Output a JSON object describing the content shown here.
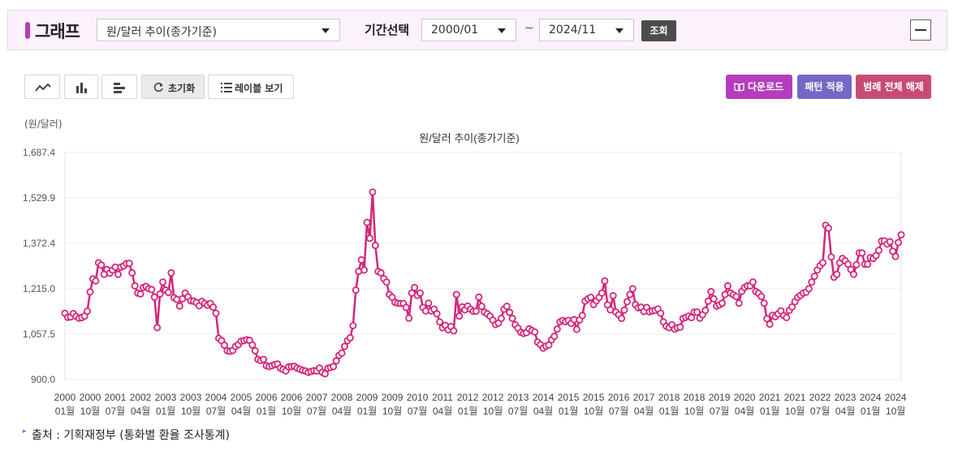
{
  "header": {
    "title": "그래프",
    "indicator_select": "원/달러 추이(종가기준)",
    "period_label": "기간선택",
    "period_start": "2000/01",
    "period_tilde": "~",
    "period_end": "2024/11",
    "query_button": "조회"
  },
  "toolbar": {
    "reset_label": "초기화",
    "label_view": "레이블 보기",
    "download_label": "다운로드",
    "pattern_label": "패턴 적용",
    "legend_release_label": "범례 전체 해제"
  },
  "colors": {
    "accent": "#b23dbb",
    "series": "#d4267a",
    "download_button": "#b43cbd",
    "pattern_button": "#7468c6",
    "legend_button": "#c84b74"
  },
  "icons": [
    "line-chart-icon",
    "bar-chart-icon",
    "horizontal-bar-chart-icon",
    "refresh-icon",
    "list-icon",
    "book-icon",
    "chevron-down-icon",
    "minus-icon"
  ],
  "unit_label": "(원/달러)",
  "source": "출처 : 기획재정부 (통화별 환율 조사통계)",
  "chart_data": {
    "type": "line",
    "title": "원/달러 추이(종가기준)",
    "ylabel": "(원/달러)",
    "ylim": [
      900.0,
      1687.4
    ],
    "yticks": [
      "900.0",
      "1,057.5",
      "1,215.0",
      "1,372.4",
      "1,529.9",
      "1,687.4"
    ],
    "x_start": "2000/01",
    "x_end": "2024/11",
    "xtick_labels": [
      [
        "2000",
        "01월"
      ],
      [
        "2000",
        "10월"
      ],
      [
        "2001",
        "07월"
      ],
      [
        "2002",
        "04월"
      ],
      [
        "2003",
        "01월"
      ],
      [
        "2003",
        "10월"
      ],
      [
        "2004",
        "07월"
      ],
      [
        "2005",
        "04월"
      ],
      [
        "2006",
        "01월"
      ],
      [
        "2006",
        "10월"
      ],
      [
        "2007",
        "07월"
      ],
      [
        "2008",
        "04월"
      ],
      [
        "2009",
        "01월"
      ],
      [
        "2009",
        "10월"
      ],
      [
        "2010",
        "07월"
      ],
      [
        "2011",
        "04월"
      ],
      [
        "2012",
        "01월"
      ],
      [
        "2012",
        "10월"
      ],
      [
        "2013",
        "07월"
      ],
      [
        "2014",
        "04월"
      ],
      [
        "2015",
        "01월"
      ],
      [
        "2015",
        "10월"
      ],
      [
        "2016",
        "07월"
      ],
      [
        "2017",
        "04월"
      ],
      [
        "2018",
        "01월"
      ],
      [
        "2018",
        "10월"
      ],
      [
        "2019",
        "07월"
      ],
      [
        "2020",
        "04월"
      ],
      [
        "2021",
        "01월"
      ],
      [
        "2021",
        "10월"
      ],
      [
        "2022",
        "07월"
      ],
      [
        "2023",
        "04월"
      ],
      [
        "2024",
        "01월"
      ],
      [
        "2024",
        "10월"
      ]
    ],
    "grid": true,
    "legend": "none",
    "series": [
      {
        "values": [
          1130,
          1116,
          1117,
          1129,
          1119,
          1113,
          1115,
          1120,
          1137,
          1204,
          1249,
          1242,
          1305,
          1297,
          1265,
          1282,
          1269,
          1280,
          1290,
          1265,
          1290,
          1294,
          1302,
          1303,
          1270,
          1225,
          1200,
          1197,
          1219,
          1223,
          1215,
          1212,
          1186,
          1080,
          1197,
          1238,
          1210,
          1202,
          1270,
          1184,
          1178,
          1155,
          1180,
          1200,
          1187,
          1173,
          1172,
          1167,
          1156,
          1171,
          1164,
          1158,
          1164,
          1151,
          1130,
          1043,
          1035,
          1019,
          1000,
          998,
          1001,
          1015,
          1021,
          1033,
          1035,
          1038,
          1036,
          1020,
          1000,
          970,
          966,
          970,
          948,
          945,
          948,
          952,
          954,
          940,
          935,
          930,
          944,
          945,
          946,
          940,
          936,
          932,
          930,
          925,
          928,
          931,
          930,
          940,
          925,
          920,
          939,
          942,
          945,
          965,
          984,
          992,
          1015,
          1035,
          1045,
          1087,
          1210,
          1275,
          1315,
          1280,
          1445,
          1390,
          1550,
          1365,
          1275,
          1270,
          1250,
          1238,
          1195,
          1185,
          1168,
          1165,
          1164,
          1164,
          1150,
          1113,
          1200,
          1219,
          1192,
          1200,
          1150,
          1138,
          1165,
          1138,
          1144,
          1128,
          1100,
          1080,
          1088,
          1073,
          1084,
          1069,
          1195,
          1120,
          1152,
          1142,
          1155,
          1144,
          1137,
          1137,
          1186,
          1154,
          1134,
          1128,
          1120,
          1106,
          1091,
          1096,
          1112,
          1144,
          1154,
          1133,
          1112,
          1090,
          1078,
          1064,
          1060,
          1063,
          1076,
          1070,
          1065,
          1030,
          1021,
          1009,
          1016,
          1020,
          1038,
          1050,
          1075,
          1100,
          1105,
          1101,
          1105,
          1095,
          1108,
          1074,
          1107,
          1122,
          1172,
          1180,
          1185,
          1160,
          1173,
          1185,
          1200,
          1242,
          1159,
          1142,
          1191,
          1134,
          1125,
          1112,
          1141,
          1170,
          1195,
          1215,
          1160,
          1149,
          1151,
          1136,
          1150,
          1135,
          1138,
          1140,
          1145,
          1130,
          1100,
          1085,
          1080,
          1090,
          1075,
          1080,
          1082,
          1112,
          1116,
          1120,
          1115,
          1134,
          1134,
          1113,
          1125,
          1140,
          1172,
          1205,
          1180,
          1155,
          1159,
          1165,
          1195,
          1225,
          1200,
          1194,
          1188,
          1165,
          1206,
          1219,
          1225,
          1225,
          1238,
          1205,
          1199,
          1188,
          1165,
          1111,
          1092,
          1123,
          1118,
          1128,
          1138,
          1122,
          1115,
          1140,
          1152,
          1170,
          1185,
          1192,
          1200,
          1203,
          1215,
          1238,
          1258,
          1280,
          1295,
          1305,
          1435,
          1425,
          1325,
          1255,
          1265,
          1305,
          1320,
          1312,
          1300,
          1282,
          1265,
          1298,
          1339,
          1339,
          1300,
          1300,
          1323,
          1320,
          1330,
          1348,
          1380,
          1381,
          1370,
          1378,
          1345,
          1327,
          1375,
          1402
        ]
      }
    ]
  }
}
